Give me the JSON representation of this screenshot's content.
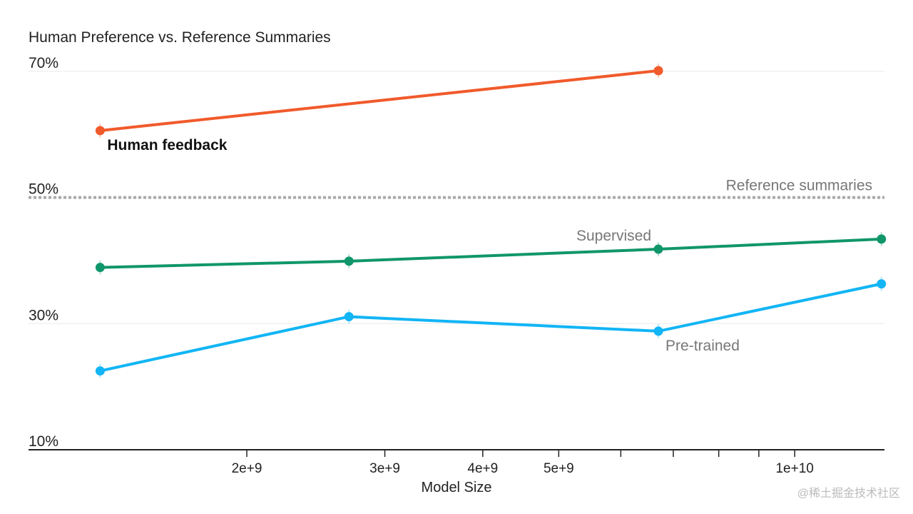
{
  "chart_data": {
    "type": "line",
    "title": "Human Preference vs. Reference Summaries",
    "xlabel": "Model Size",
    "ylabel": "",
    "x_scale": "log",
    "xlim": [
      1150000000.0,
      13000000000.0
    ],
    "ylim": [
      10,
      72
    ],
    "grid": true,
    "x_ticks": [
      {
        "value": 2000000000.0,
        "label": "2e+9"
      },
      {
        "value": 3000000000.0,
        "label": "3e+9"
      },
      {
        "value": 4000000000.0,
        "label": "4e+9"
      },
      {
        "value": 5000000000.0,
        "label": "5e+9"
      },
      {
        "value": 6000000000.0,
        "label": ""
      },
      {
        "value": 7000000000.0,
        "label": ""
      },
      {
        "value": 8000000000.0,
        "label": ""
      },
      {
        "value": 9000000000.0,
        "label": ""
      },
      {
        "value": 10000000000.0,
        "label": "1e+10"
      }
    ],
    "y_ticks": [
      {
        "value": 10,
        "label": "10%"
      },
      {
        "value": 30,
        "label": "30%"
      },
      {
        "value": 50,
        "label": "50%"
      },
      {
        "value": 70,
        "label": "70%"
      }
    ],
    "reference": {
      "name": "Reference summaries",
      "value": 50,
      "color": "#aaaaaa"
    },
    "series": [
      {
        "name": "Human feedback",
        "color": "#f15a2b",
        "x": [
          1300000000.0,
          6700000000.0
        ],
        "values": [
          60.6,
          70.1
        ]
      },
      {
        "name": "Supervised",
        "color": "#10966a",
        "x": [
          1300000000.0,
          2700000000.0,
          6700000000.0,
          12900000000.0
        ],
        "values": [
          38.9,
          39.9,
          41.8,
          43.4
        ]
      },
      {
        "name": "Pre-trained",
        "color": "#12b5f5",
        "x": [
          1300000000.0,
          2700000000.0,
          6700000000.0,
          12900000000.0
        ],
        "values": [
          22.5,
          31.1,
          28.8,
          36.3
        ]
      }
    ]
  },
  "watermark": "@稀土掘金技术社区"
}
